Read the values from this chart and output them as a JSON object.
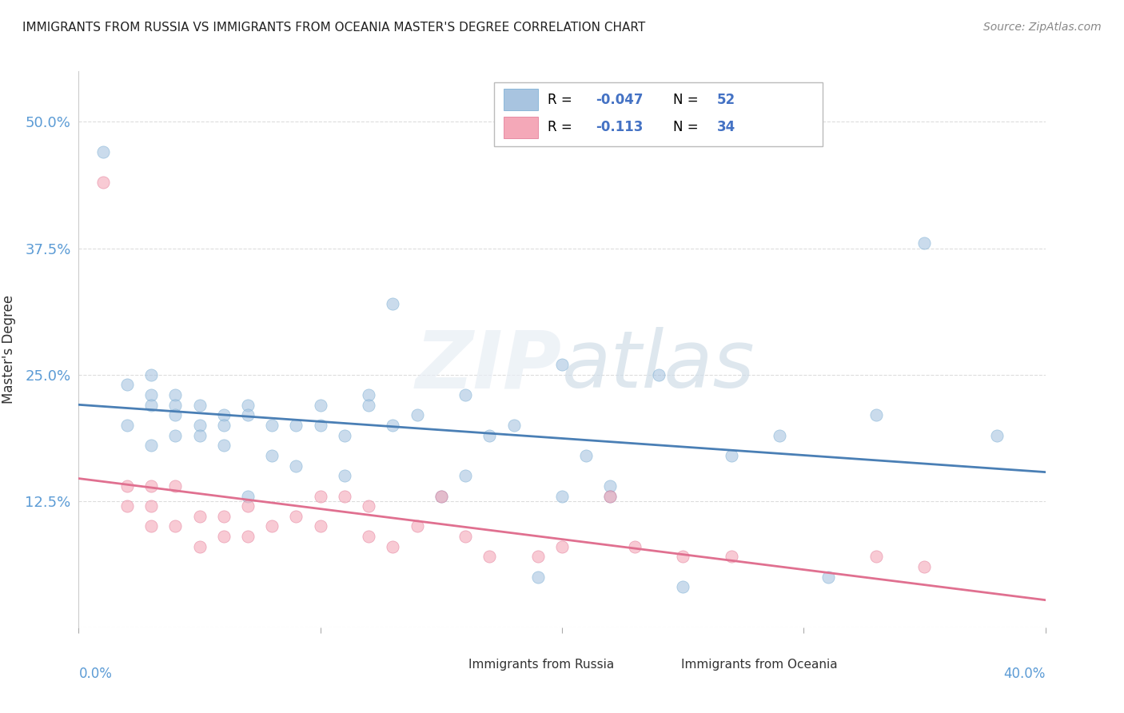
{
  "title": "IMMIGRANTS FROM RUSSIA VS IMMIGRANTS FROM OCEANIA MASTER'S DEGREE CORRELATION CHART",
  "source": "Source: ZipAtlas.com",
  "xlabel_bottom_left": "0.0%",
  "xlabel_bottom_right": "40.0%",
  "ylabel": "Master's Degree",
  "yticks": [
    0.0,
    0.125,
    0.25,
    0.375,
    0.5
  ],
  "ytick_labels": [
    "",
    "12.5%",
    "25.0%",
    "37.5%",
    "50.0%"
  ],
  "xlim": [
    0.0,
    0.4
  ],
  "ylim": [
    0.0,
    0.55
  ],
  "russia_color": "#a8c4e0",
  "russia_edge": "#6fa8d0",
  "russia_line_color": "#4a7fb5",
  "oceania_color": "#f4a8b8",
  "oceania_edge": "#e07090",
  "oceania_line_color": "#e07090",
  "watermark": "ZIPatlas",
  "legend_R_russia": "R = -0.047",
  "legend_N_russia": "N = 52",
  "legend_R_oceania": "R =  -0.113",
  "legend_N_oceania": "N = 34",
  "russia_R": -0.047,
  "russia_N": 52,
  "oceania_R": -0.113,
  "oceania_N": 34,
  "russia_x": [
    0.01,
    0.02,
    0.02,
    0.03,
    0.03,
    0.03,
    0.03,
    0.04,
    0.04,
    0.04,
    0.04,
    0.05,
    0.05,
    0.05,
    0.06,
    0.06,
    0.06,
    0.07,
    0.07,
    0.07,
    0.08,
    0.08,
    0.09,
    0.09,
    0.1,
    0.1,
    0.11,
    0.11,
    0.12,
    0.12,
    0.13,
    0.13,
    0.14,
    0.15,
    0.16,
    0.16,
    0.17,
    0.18,
    0.19,
    0.2,
    0.2,
    0.21,
    0.22,
    0.22,
    0.24,
    0.25,
    0.27,
    0.29,
    0.31,
    0.33,
    0.35,
    0.38
  ],
  "russia_y": [
    0.47,
    0.24,
    0.2,
    0.25,
    0.23,
    0.22,
    0.18,
    0.23,
    0.22,
    0.21,
    0.19,
    0.22,
    0.2,
    0.19,
    0.21,
    0.2,
    0.18,
    0.22,
    0.21,
    0.13,
    0.2,
    0.17,
    0.16,
    0.2,
    0.2,
    0.22,
    0.19,
    0.15,
    0.23,
    0.22,
    0.32,
    0.2,
    0.21,
    0.13,
    0.15,
    0.23,
    0.19,
    0.2,
    0.05,
    0.26,
    0.13,
    0.17,
    0.14,
    0.13,
    0.25,
    0.04,
    0.17,
    0.19,
    0.05,
    0.21,
    0.38,
    0.19
  ],
  "oceania_x": [
    0.01,
    0.02,
    0.02,
    0.03,
    0.03,
    0.03,
    0.04,
    0.04,
    0.05,
    0.05,
    0.06,
    0.06,
    0.07,
    0.07,
    0.08,
    0.09,
    0.1,
    0.1,
    0.11,
    0.12,
    0.12,
    0.13,
    0.14,
    0.15,
    0.16,
    0.17,
    0.19,
    0.2,
    0.22,
    0.23,
    0.25,
    0.27,
    0.33,
    0.35
  ],
  "oceania_y": [
    0.44,
    0.14,
    0.12,
    0.14,
    0.12,
    0.1,
    0.14,
    0.1,
    0.11,
    0.08,
    0.11,
    0.09,
    0.12,
    0.09,
    0.1,
    0.11,
    0.13,
    0.1,
    0.13,
    0.12,
    0.09,
    0.08,
    0.1,
    0.13,
    0.09,
    0.07,
    0.07,
    0.08,
    0.13,
    0.08,
    0.07,
    0.07,
    0.07,
    0.06
  ],
  "russia_intercept": 0.207,
  "russia_slope": -0.047,
  "oceania_intercept": 0.155,
  "oceania_slope": -0.113,
  "dot_size": 120,
  "dot_alpha": 0.6,
  "background_color": "#ffffff",
  "grid_color": "#dddddd",
  "title_fontsize": 11,
  "axis_label_color": "#5b9bd5",
  "legend_text_color": "#4472c4"
}
